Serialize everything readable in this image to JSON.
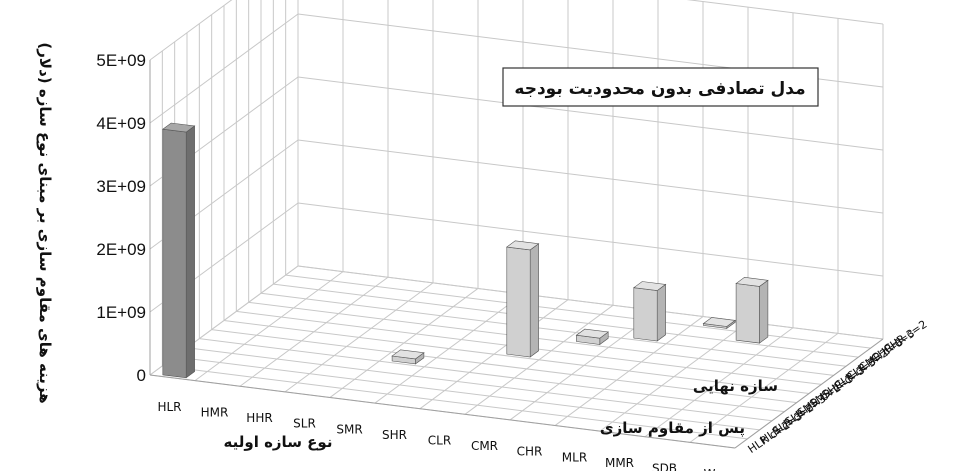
{
  "chart_data": {
    "type": "bar",
    "title": "مدل تصادفی بدون محدودیت بودجه",
    "xlabel": "نوع سازه اولیه",
    "ylabel": "هزینه های مقاوم سازی بر مبنای نوع سازه (دلار)",
    "zlabel_line1": "سازه نهایی",
    "zlabel_line2": "پس از  مقاوم سازی",
    "categories": [
      "HLR",
      "HMR",
      "HHR",
      "SLR",
      "SMR",
      "SHR",
      "CLR",
      "CMR",
      "CHR",
      "MLR",
      "MMR",
      "SDB",
      "W"
    ],
    "depth_categories": [
      "HLR c=2",
      "HLR c=3",
      "SLR c=2",
      "SLR c=3",
      "SMR c=2",
      "SMR c=3",
      "SHR c=3",
      "CLR c=3",
      "CLR c=2",
      "CMR c=3",
      "CHR c=3",
      "CHR c=2"
    ],
    "yticks": [
      "0",
      "1E+09",
      "2E+09",
      "3E+09",
      "4E+09",
      "5E+09"
    ],
    "ylim": [
      0,
      5000000000
    ],
    "series": [
      {
        "category": "HLR",
        "depth": "HLR c=2",
        "value": 3900000000
      },
      {
        "category": "SMR",
        "depth": "SMR c=2",
        "value": 80000000
      },
      {
        "category": "CLR",
        "depth": "SHR c=3",
        "value": 1700000000
      },
      {
        "category": "CMR",
        "depth": "CLR c=2",
        "value": 100000000
      },
      {
        "category": "CHR",
        "depth": "CMR c=3",
        "value": 800000000
      },
      {
        "category": "MLR",
        "depth": "CHR c=2",
        "value": 30000000
      },
      {
        "category": "MMR",
        "depth": "CHR c=3",
        "value": 900000000
      }
    ],
    "grid": true,
    "colors": {
      "dark_bar": "#8c8c8c",
      "light_bar": "#d0d0d0"
    }
  }
}
